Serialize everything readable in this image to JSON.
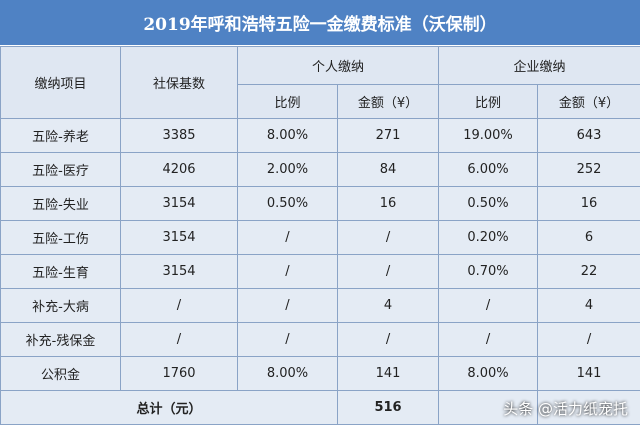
{
  "title": "2019年呼和浩特五险一金缴费标准（沃保制）",
  "header": {
    "item": "缴纳项目",
    "base": "社保基数",
    "personal": "个人缴纳",
    "company": "企业缴纳",
    "sub": [
      "比例",
      "金额（¥）",
      "比例",
      "金额（¥）"
    ]
  },
  "rows": [
    [
      "五险-养老",
      "3385",
      "8.00%",
      "271",
      "19.00%",
      "643"
    ],
    [
      "五险-医疗",
      "4206",
      "2.00%",
      "84",
      "6.00%",
      "252"
    ],
    [
      "五险-失业",
      "3154",
      "0.50%",
      "16",
      "0.50%",
      "16"
    ],
    [
      "五险-工伤",
      "3154",
      "/",
      "/",
      "0.20%",
      "6"
    ],
    [
      "五险-生育",
      "3154",
      "/",
      "/",
      "0.70%",
      "22"
    ],
    [
      "补充-大病",
      "/",
      "/",
      "4",
      "/",
      "4"
    ],
    [
      "补充-残保金",
      "/",
      "/",
      "/",
      "/",
      "/"
    ],
    [
      "公积金",
      "1760",
      "8.00%",
      "141",
      "8.00%",
      "141"
    ]
  ],
  "total": {
    "label": "总计（元）",
    "value": "516"
  },
  "watermark": "头条 @活力纸宠托"
}
